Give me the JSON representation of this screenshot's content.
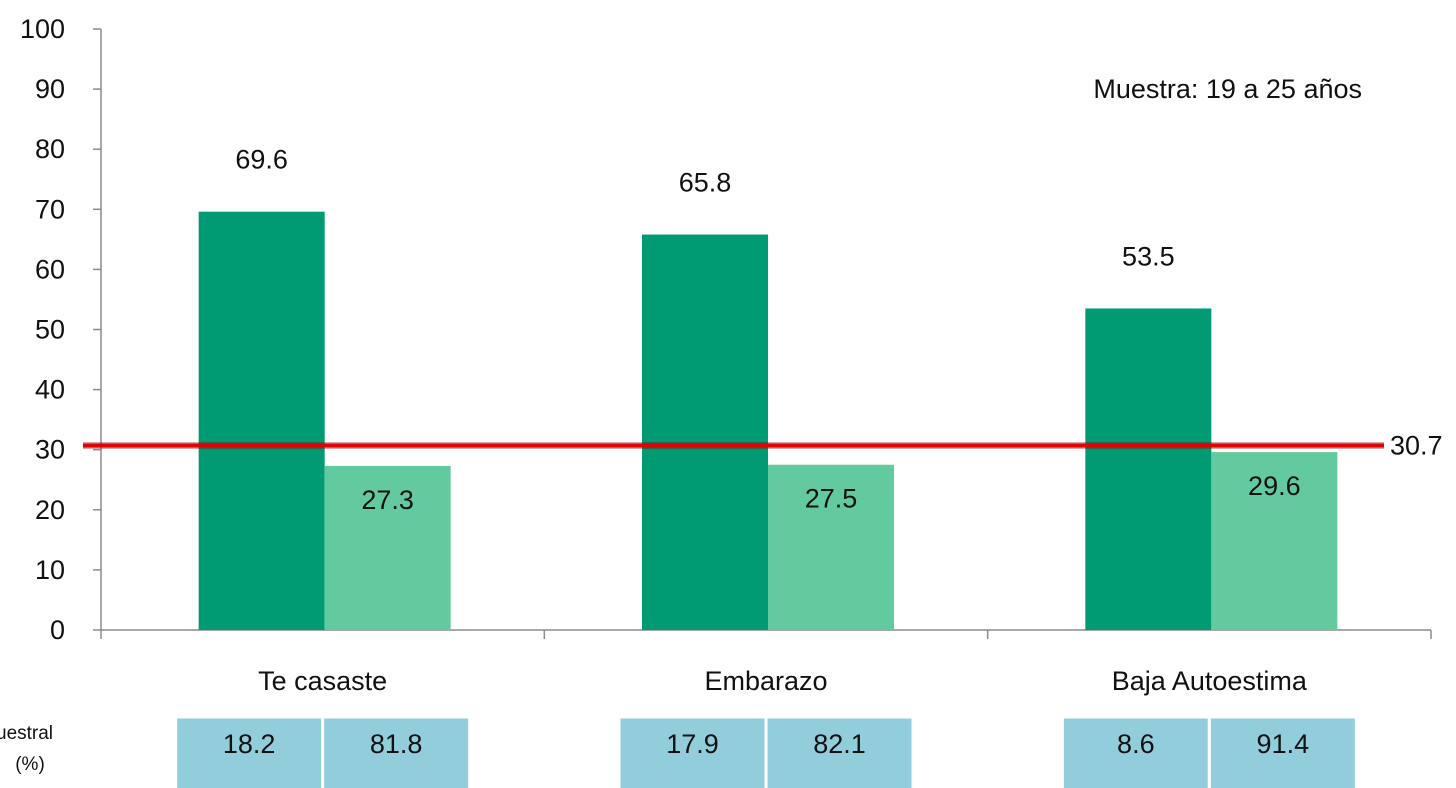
{
  "chart_data": {
    "type": "bar",
    "categories": [
      "Te casaste",
      "Embarazo",
      "Baja Autoestima"
    ],
    "series": [
      {
        "values": [
          69.6,
          65.8,
          53.5
        ]
      },
      {
        "values": [
          27.3,
          27.5,
          29.6
        ]
      }
    ],
    "data_labels": [
      [
        "69.6",
        "65.8",
        "53.5"
      ],
      [
        "27.3",
        "27.5",
        "29.6"
      ]
    ],
    "reference_line": {
      "value": 30.7,
      "label": "30.7"
    },
    "annotation": "Muestra: 19 a 25 años",
    "ylim": [
      0,
      100
    ],
    "yticks": [
      "0",
      "10",
      "20",
      "30",
      "40",
      "50",
      "60",
      "70",
      "80",
      "90",
      "100"
    ],
    "xlabel": "",
    "ylabel": "",
    "grid": false,
    "colors": {
      "series1": "#009A73",
      "series2": "#62CA9E",
      "reference_line": "#E00000",
      "table_cell": "#92CDDC"
    },
    "sample_table": {
      "label_line1": "uestral",
      "label_line2": "(%)",
      "rows": [
        [
          "18.2",
          "81.8"
        ],
        [
          "17.9",
          "82.1"
        ],
        [
          "8.6",
          "91.4"
        ]
      ]
    }
  }
}
